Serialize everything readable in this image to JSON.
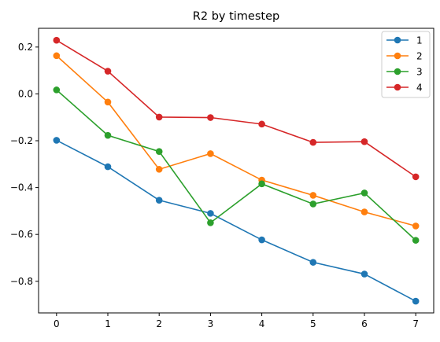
{
  "chart_data": {
    "type": "line",
    "title": "R2 by timestep",
    "xlabel": "",
    "ylabel": "",
    "x": [
      0,
      1,
      2,
      3,
      4,
      5,
      6,
      7
    ],
    "xlim": [
      -0.35,
      7.35
    ],
    "ylim": [
      -0.935,
      0.28
    ],
    "xticks": [
      0,
      1,
      2,
      3,
      4,
      5,
      6,
      7
    ],
    "yticks": [
      0.2,
      0.0,
      -0.2,
      -0.4,
      -0.6,
      -0.8
    ],
    "ytick_labels": [
      "0.2",
      "0.0",
      "−0.2",
      "−0.4",
      "−0.6",
      "−0.8"
    ],
    "grid": false,
    "legend_position": "top-right",
    "series": [
      {
        "name": "1",
        "color": "#1f77b4",
        "values": [
          -0.198,
          -0.311,
          -0.454,
          -0.51,
          -0.623,
          -0.719,
          -0.769,
          -0.885
        ]
      },
      {
        "name": "2",
        "color": "#ff7f0e",
        "values": [
          0.163,
          -0.035,
          -0.322,
          -0.255,
          -0.368,
          -0.433,
          -0.504,
          -0.564
        ]
      },
      {
        "name": "3",
        "color": "#2ca02c",
        "values": [
          0.017,
          -0.177,
          -0.246,
          -0.55,
          -0.384,
          -0.47,
          -0.423,
          -0.625
        ]
      },
      {
        "name": "4",
        "color": "#d62728",
        "values": [
          0.229,
          0.097,
          -0.099,
          -0.101,
          -0.129,
          -0.207,
          -0.204,
          -0.354
        ]
      }
    ]
  }
}
